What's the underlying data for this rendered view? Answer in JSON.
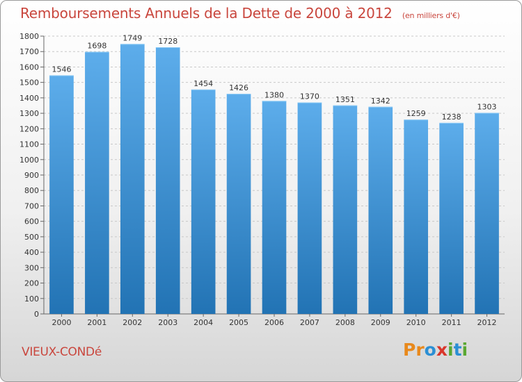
{
  "header": {
    "title": "Remboursements Annuels de la Dette de 2000 à 2012",
    "unit": "(en milliers d'€)"
  },
  "footer": {
    "commune": "VIEUX-CONDé",
    "brand": "Proxiti",
    "brand_colors": [
      "#e8891c",
      "#e8891c",
      "#2b8fd4",
      "#d9362b",
      "#5aa832",
      "#2b8fd4",
      "#5aa832"
    ]
  },
  "colors": {
    "bar_top": "#5dadeb",
    "bar_bottom": "#2273b4",
    "title": "#c9463d",
    "grid": "#c8c8c8"
  },
  "chart_data": {
    "type": "bar",
    "title": "Remboursements Annuels de la Dette de 2000 à 2012",
    "subtitle": "(en milliers d'€)",
    "xlabel": "",
    "ylabel": "",
    "categories": [
      "2000",
      "2001",
      "2002",
      "2003",
      "2004",
      "2005",
      "2006",
      "2007",
      "2008",
      "2009",
      "2010",
      "2011",
      "2012"
    ],
    "values": [
      1546,
      1698,
      1749,
      1728,
      1454,
      1426,
      1380,
      1370,
      1351,
      1342,
      1259,
      1238,
      1303
    ],
    "ylim": [
      0,
      1800
    ],
    "yticks": [
      0,
      100,
      200,
      300,
      400,
      500,
      600,
      700,
      800,
      900,
      1000,
      1100,
      1200,
      1300,
      1400,
      1500,
      1600,
      1700,
      1800
    ],
    "grid": true,
    "legend": "none"
  }
}
